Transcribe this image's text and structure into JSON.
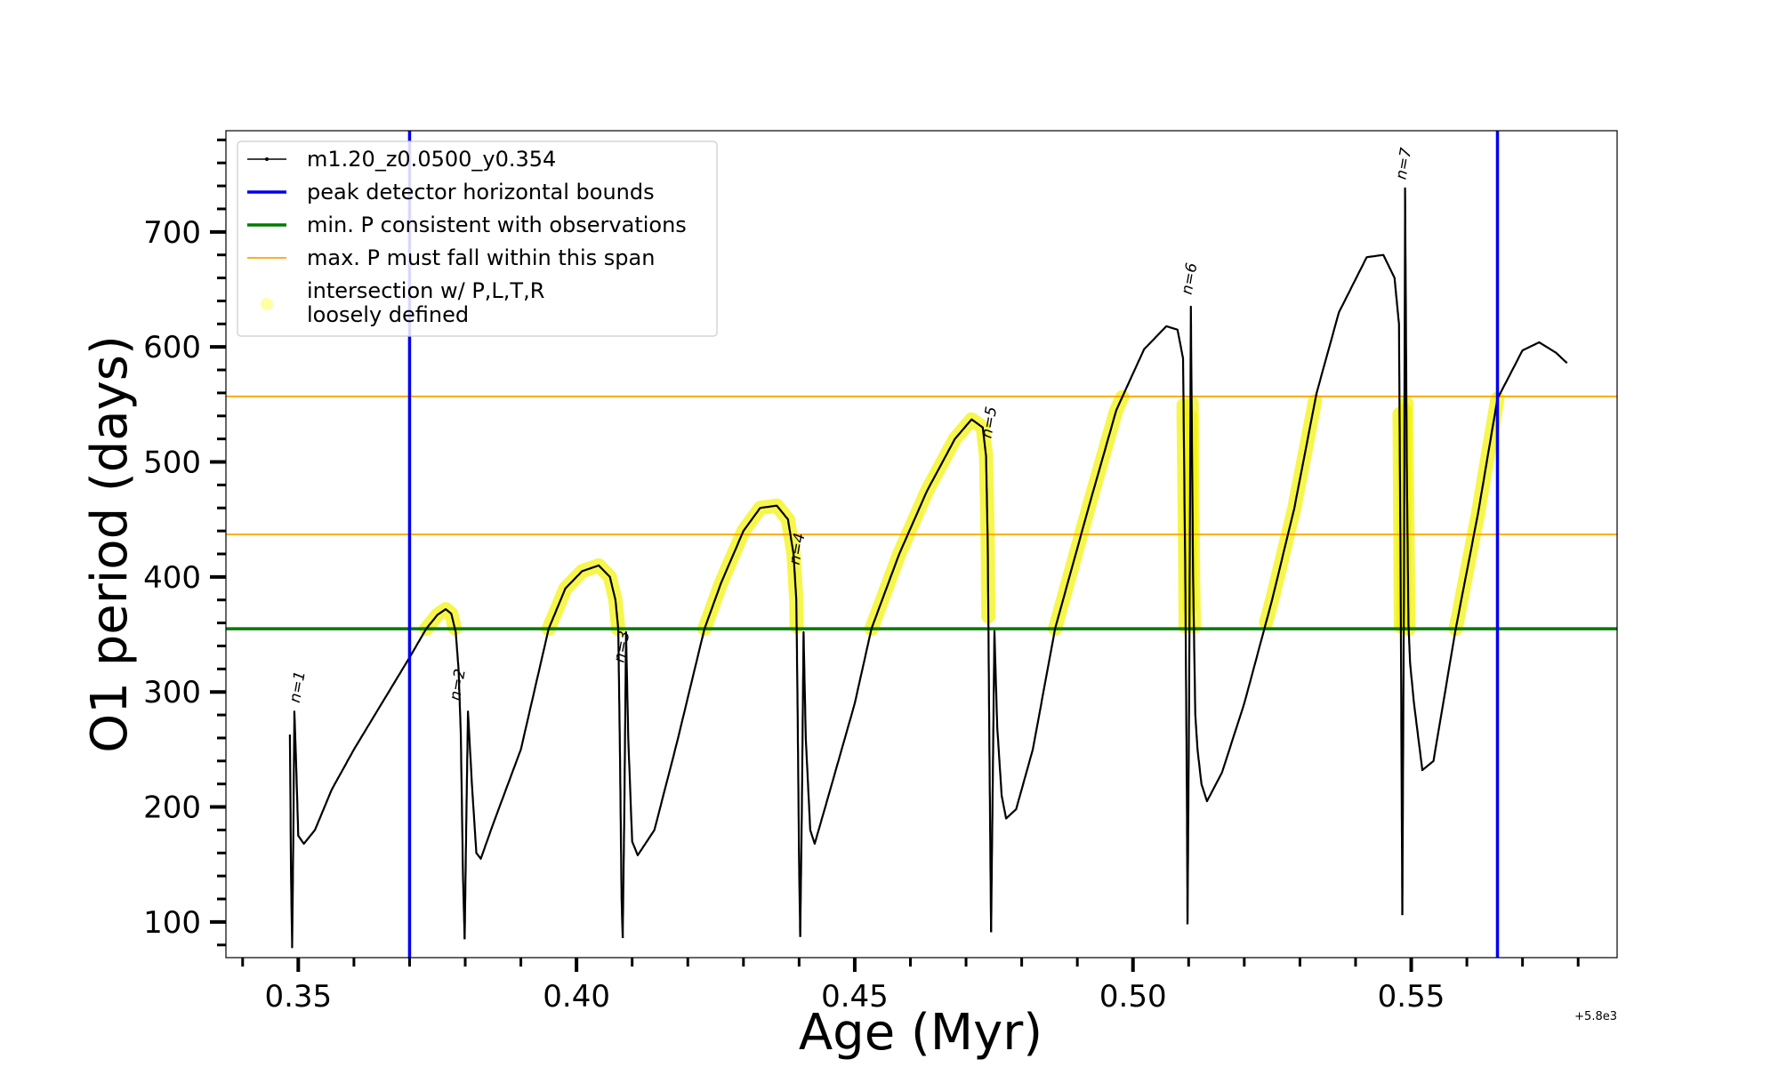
{
  "chart_data": {
    "type": "line",
    "xlabel": "Age (Myr)",
    "ylabel": "O1 period (days)",
    "x_offset_label": "+5.8e3",
    "xlim": [
      0.337,
      0.587
    ],
    "ylim": [
      69,
      788
    ],
    "x_ticks": [
      {
        "value": 0.35,
        "label": "0.35"
      },
      {
        "value": 0.4,
        "label": "0.40"
      },
      {
        "value": 0.45,
        "label": "0.45"
      },
      {
        "value": 0.5,
        "label": "0.50"
      },
      {
        "value": 0.55,
        "label": "0.55"
      }
    ],
    "y_ticks": [
      {
        "value": 100,
        "label": "100"
      },
      {
        "value": 200,
        "label": "200"
      },
      {
        "value": 300,
        "label": "300"
      },
      {
        "value": 400,
        "label": "400"
      },
      {
        "value": 500,
        "label": "500"
      },
      {
        "value": 600,
        "label": "600"
      },
      {
        "value": 700,
        "label": "700"
      }
    ],
    "x_minor_step": 0.01,
    "y_minor_step": 20,
    "legend": {
      "position": "top-left",
      "entries": [
        {
          "key": "track",
          "label": "m1.20_z0.0500_y0.354",
          "style": "line-marker",
          "color": "#000000"
        },
        {
          "key": "vbounds",
          "label": "peak detector horizontal bounds",
          "style": "line",
          "color": "#0000ee"
        },
        {
          "key": "minp",
          "label": "min. P consistent with observations",
          "style": "line",
          "color": "#007a00"
        },
        {
          "key": "maxp",
          "label": "max. P must fall within this span",
          "style": "thin-line",
          "color": "#ffa500"
        },
        {
          "key": "intersection",
          "label": "intersection w/ P,L,T,R",
          "label2": "loosely defined",
          "style": "dot",
          "color": "#ffff66"
        }
      ]
    },
    "vertical_lines": {
      "color": "#0000ee",
      "x": [
        0.37,
        0.5655
      ]
    },
    "min_period_line": {
      "color": "#007a00",
      "y": 355
    },
    "max_period_span": {
      "color": "#ffa500",
      "y": [
        437,
        557
      ]
    },
    "highlight_color": "#f2f200",
    "series": {
      "name": "m1.20_z0.0500_y0.354",
      "color": "#000000",
      "segments": [
        [
          [
            0.3485,
            263
          ],
          [
            0.3487,
            140
          ],
          [
            0.3489,
            78
          ],
          [
            0.3491,
            170
          ],
          [
            0.3493,
            283
          ],
          [
            0.3496,
            240
          ],
          [
            0.35,
            175
          ],
          [
            0.351,
            168
          ],
          [
            0.353,
            180
          ],
          [
            0.356,
            215
          ],
          [
            0.36,
            250
          ],
          [
            0.365,
            290
          ],
          [
            0.37,
            330
          ],
          [
            0.373,
            355
          ],
          [
            0.375,
            367
          ],
          [
            0.3765,
            372
          ],
          [
            0.3775,
            368
          ],
          [
            0.3783,
            352
          ],
          [
            0.3788,
            320
          ],
          [
            0.3792,
            265
          ],
          [
            0.3796,
            140
          ],
          [
            0.3799,
            85
          ]
        ],
        [
          [
            0.3799,
            85
          ],
          [
            0.3802,
            190
          ],
          [
            0.3805,
            283
          ],
          [
            0.3812,
            220
          ],
          [
            0.382,
            160
          ],
          [
            0.3828,
            155
          ],
          [
            0.385,
            185
          ],
          [
            0.39,
            250
          ],
          [
            0.395,
            355
          ],
          [
            0.398,
            390
          ],
          [
            0.401,
            405
          ],
          [
            0.404,
            410
          ],
          [
            0.406,
            400
          ],
          [
            0.407,
            380
          ],
          [
            0.4075,
            355
          ],
          [
            0.4078,
            250
          ],
          [
            0.4081,
            120
          ],
          [
            0.4083,
            86
          ]
        ],
        [
          [
            0.4083,
            86
          ],
          [
            0.4086,
            200
          ],
          [
            0.4089,
            352
          ],
          [
            0.4093,
            260
          ],
          [
            0.41,
            170
          ],
          [
            0.411,
            158
          ],
          [
            0.414,
            180
          ],
          [
            0.418,
            255
          ],
          [
            0.423,
            355
          ],
          [
            0.426,
            395
          ],
          [
            0.43,
            440
          ],
          [
            0.433,
            460
          ],
          [
            0.436,
            462
          ],
          [
            0.438,
            450
          ],
          [
            0.439,
            420
          ],
          [
            0.4395,
            380
          ],
          [
            0.4397,
            300
          ],
          [
            0.44,
            150
          ],
          [
            0.4402,
            87
          ]
        ],
        [
          [
            0.4402,
            87
          ],
          [
            0.4405,
            200
          ],
          [
            0.4408,
            352
          ],
          [
            0.4412,
            260
          ],
          [
            0.442,
            180
          ],
          [
            0.4428,
            168
          ],
          [
            0.445,
            205
          ],
          [
            0.45,
            290
          ],
          [
            0.453,
            355
          ],
          [
            0.458,
            420
          ],
          [
            0.463,
            475
          ],
          [
            0.468,
            520
          ],
          [
            0.471,
            537
          ],
          [
            0.473,
            530
          ],
          [
            0.4736,
            505
          ],
          [
            0.4739,
            430
          ],
          [
            0.4742,
            250
          ],
          [
            0.4745,
            91
          ]
        ],
        [
          [
            0.4745,
            91
          ],
          [
            0.4748,
            220
          ],
          [
            0.4751,
            353
          ],
          [
            0.4756,
            270
          ],
          [
            0.4764,
            210
          ],
          [
            0.4772,
            190
          ],
          [
            0.479,
            198
          ],
          [
            0.482,
            250
          ],
          [
            0.486,
            355
          ],
          [
            0.492,
            460
          ],
          [
            0.497,
            545
          ],
          [
            0.502,
            598
          ],
          [
            0.506,
            618
          ],
          [
            0.508,
            615
          ],
          [
            0.509,
            590
          ],
          [
            0.5094,
            400
          ],
          [
            0.5097,
            200
          ],
          [
            0.5098,
            98
          ]
        ],
        [
          [
            0.5098,
            98
          ],
          [
            0.5101,
            300
          ],
          [
            0.5104,
            635
          ],
          [
            0.5108,
            400
          ],
          [
            0.5112,
            280
          ],
          [
            0.5116,
            250
          ],
          [
            0.5123,
            220
          ],
          [
            0.5133,
            205
          ],
          [
            0.516,
            230
          ],
          [
            0.52,
            290
          ],
          [
            0.525,
            380
          ],
          [
            0.529,
            460
          ],
          [
            0.533,
            560
          ],
          [
            0.537,
            630
          ],
          [
            0.542,
            678
          ],
          [
            0.545,
            680
          ],
          [
            0.547,
            660
          ],
          [
            0.5478,
            620
          ],
          [
            0.5481,
            400
          ],
          [
            0.5483,
            200
          ],
          [
            0.5484,
            106
          ]
        ],
        [
          [
            0.5484,
            106
          ],
          [
            0.5487,
            400
          ],
          [
            0.5489,
            738
          ],
          [
            0.5492,
            500
          ],
          [
            0.5495,
            360
          ],
          [
            0.5498,
            325
          ],
          [
            0.5505,
            290
          ],
          [
            0.552,
            232
          ],
          [
            0.554,
            240
          ],
          [
            0.558,
            355
          ],
          [
            0.562,
            455
          ],
          [
            0.5655,
            555
          ],
          [
            0.57,
            597
          ],
          [
            0.573,
            604
          ],
          [
            0.576,
            595
          ],
          [
            0.578,
            586
          ]
        ]
      ]
    },
    "n_labels": [
      {
        "text": "n=1",
        "x": 0.3502,
        "y": 290
      },
      {
        "text": "n=2",
        "x": 0.379,
        "y": 292
      },
      {
        "text": "n=3",
        "x": 0.4085,
        "y": 325
      },
      {
        "text": "n=4",
        "x": 0.44,
        "y": 410
      },
      {
        "text": "n=5",
        "x": 0.4745,
        "y": 520
      },
      {
        "text": "n=6",
        "x": 0.5105,
        "y": 645
      },
      {
        "text": "n=7",
        "x": 0.549,
        "y": 745
      }
    ]
  }
}
